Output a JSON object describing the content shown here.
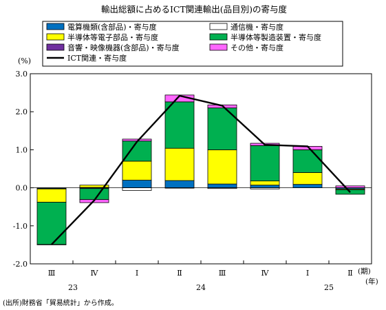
{
  "source_note": "(出所)財務省「貿易統計」から作成。",
  "chart_data": {
    "type": "bar",
    "stacked": true,
    "title": "輸出総額に占めるICT関連輸出(品目別)の寄与度",
    "ylabel": "(%)",
    "xlabel": "(期)",
    "year_axis_label": "(年)",
    "ylim": [
      -2.0,
      3.0
    ],
    "yticks": [
      "3.0",
      "2.0",
      "1.0",
      "0.0",
      "-1.0",
      "-2.0"
    ],
    "ytick_values": [
      3,
      2,
      1,
      0,
      -1,
      -2
    ],
    "grid": false,
    "legend_position": "top",
    "categories": [
      "Ⅲ",
      "Ⅳ",
      "Ⅰ",
      "Ⅱ",
      "Ⅲ",
      "Ⅳ",
      "Ⅰ",
      "Ⅱ"
    ],
    "years": [
      {
        "label": "23",
        "start": 0,
        "end": 1
      },
      {
        "label": "24",
        "start": 2,
        "end": 5
      },
      {
        "label": "25",
        "start": 6,
        "end": 7
      }
    ],
    "series": [
      {
        "name": "電算機類(含部品)・寄与度",
        "color": "#0070C0",
        "values": [
          -0.02,
          -0.02,
          0.2,
          0.19,
          0.1,
          0.07,
          0.09,
          -0.03
        ]
      },
      {
        "name": "通信機・寄与度",
        "color": "#FFFFFF",
        "values": [
          -0.01,
          0.01,
          -0.07,
          -0.01,
          -0.02,
          -0.03,
          0.0,
          0.0
        ]
      },
      {
        "name": "半導体等電子部品・寄与度",
        "color": "#FFFF00",
        "values": [
          -0.35,
          0.06,
          0.5,
          0.85,
          0.9,
          0.11,
          0.31,
          -0.02
        ]
      },
      {
        "name": "半導体等製造装置・寄与度",
        "color": "#00B050",
        "values": [
          -1.11,
          -0.29,
          0.53,
          1.22,
          1.1,
          0.93,
          0.6,
          -0.12
        ]
      },
      {
        "name": "音響・映像機器(含部品)・寄与度",
        "color": "#7030A0",
        "values": [
          0.0,
          0.0,
          0.0,
          0.0,
          0.0,
          0.0,
          0.0,
          0.0
        ]
      },
      {
        "name": "その他・寄与度",
        "color": "#FF66FF",
        "values": [
          -0.01,
          -0.08,
          0.05,
          0.18,
          0.08,
          0.06,
          0.09,
          0.05
        ]
      }
    ],
    "line": {
      "name": "ICT関連・寄与度",
      "color": "#000000",
      "values": [
        -1.49,
        -0.33,
        1.21,
        2.42,
        2.16,
        1.13,
        1.09,
        -0.12
      ]
    }
  }
}
